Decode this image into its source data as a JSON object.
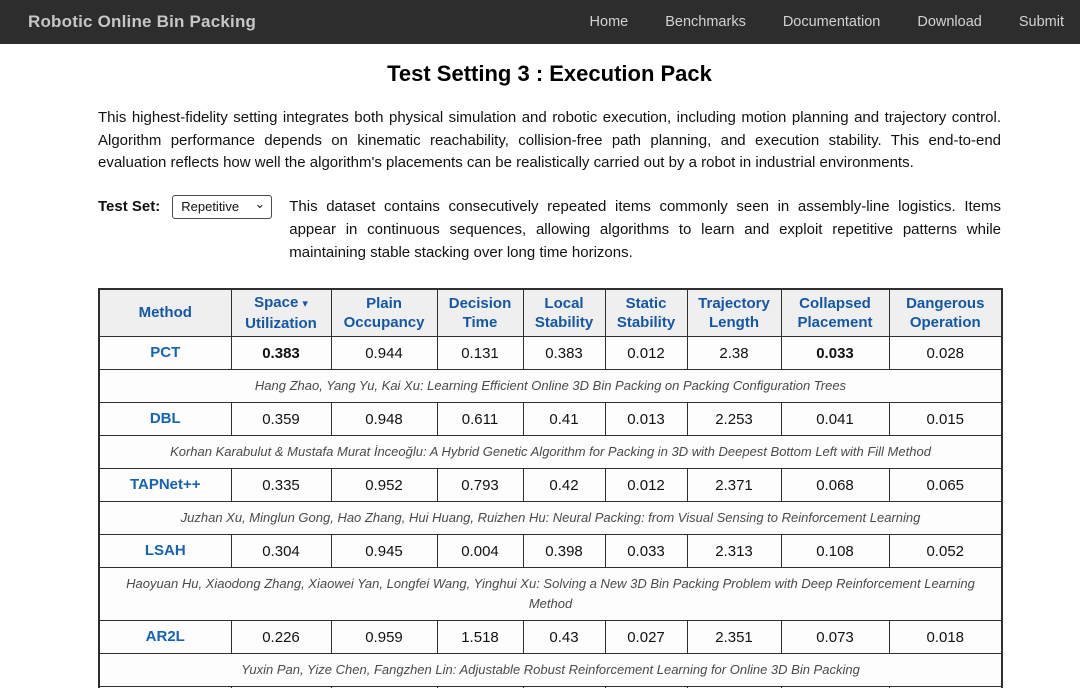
{
  "navbar": {
    "brand": "Robotic Online Bin Packing",
    "links": [
      "Home",
      "Benchmarks",
      "Documentation",
      "Download",
      "Submit"
    ]
  },
  "page": {
    "title": "Test Setting 3 : Execution Pack",
    "description": "This highest-fidelity setting integrates both physical simulation and robotic execution, including motion planning and trajectory control. Algorithm performance depends on kinematic reachability, collision-free path planning, and execution stability. This end-to-end evaluation reflects how well the algorithm's placements can be realistically carried out by a robot in industrial environments."
  },
  "test_set": {
    "label": "Test Set:",
    "selected": "Repetitive",
    "description": "This dataset contains consecutively repeated items commonly seen in assembly-line logistics. Items appear in continuous sequences, allowing algorithms to learn and exploit repetitive patterns while maintaining stable stacking over long time horizons."
  },
  "colors": {
    "navbar_bg": "#2d2d2d",
    "header_blue": "#1457a8",
    "table_border": "#2f2f2f",
    "header_bg": "#efefef"
  },
  "table": {
    "sort_icon": "▾",
    "headers": [
      {
        "line1": "Method",
        "line2": ""
      },
      {
        "line1": "Space",
        "line2": "Utilization"
      },
      {
        "line1": "Plain",
        "line2": "Occupancy"
      },
      {
        "line1": "Decision",
        "line2": "Time"
      },
      {
        "line1": "Local",
        "line2": "Stability"
      },
      {
        "line1": "Static",
        "line2": "Stability"
      },
      {
        "line1": "Trajectory",
        "line2": "Length"
      },
      {
        "line1": "Collapsed",
        "line2": "Placement"
      },
      {
        "line1": "Dangerous",
        "line2": "Operation"
      }
    ],
    "rows": [
      {
        "method": "PCT",
        "values": [
          "0.383",
          "0.944",
          "0.131",
          "0.383",
          "0.012",
          "2.38",
          "0.033",
          "0.028"
        ],
        "bold": [
          0,
          6
        ],
        "citation": "Hang Zhao, Yang Yu, Kai Xu: Learning Efficient Online 3D Bin Packing on Packing Configuration Trees"
      },
      {
        "method": "DBL",
        "values": [
          "0.359",
          "0.948",
          "0.611",
          "0.41",
          "0.013",
          "2.253",
          "0.041",
          "0.015"
        ],
        "bold": [],
        "citation": "Korhan Karabulut & Mustafa Murat İnceoğlu: A Hybrid Genetic Algorithm for Packing in 3D with Deepest Bottom Left with Fill Method"
      },
      {
        "method": "TAPNet++",
        "values": [
          "0.335",
          "0.952",
          "0.793",
          "0.42",
          "0.012",
          "2.371",
          "0.068",
          "0.065"
        ],
        "bold": [],
        "citation": "Juzhan Xu, Minglun Gong, Hao Zhang, Hui Huang, Ruizhen Hu: Neural Packing: from Visual Sensing to Reinforcement Learning"
      },
      {
        "method": "LSAH",
        "values": [
          "0.304",
          "0.945",
          "0.004",
          "0.398",
          "0.033",
          "2.313",
          "0.108",
          "0.052"
        ],
        "bold": [],
        "citation": "Haoyuan Hu, Xiaodong Zhang, Xiaowei Yan, Longfei Wang, Yinghui Xu: Solving a New 3D Bin Packing Problem with Deep Reinforcement Learning Method"
      },
      {
        "method": "AR2L",
        "values": [
          "0.226",
          "0.959",
          "1.518",
          "0.43",
          "0.027",
          "2.351",
          "0.073",
          "0.018"
        ],
        "bold": [],
        "citation": "Yuxin Pan, Yize Chen, Fangzhen Lin: Adjustable Robust Reinforcement Learning for Online 3D Bin Packing"
      }
    ]
  }
}
